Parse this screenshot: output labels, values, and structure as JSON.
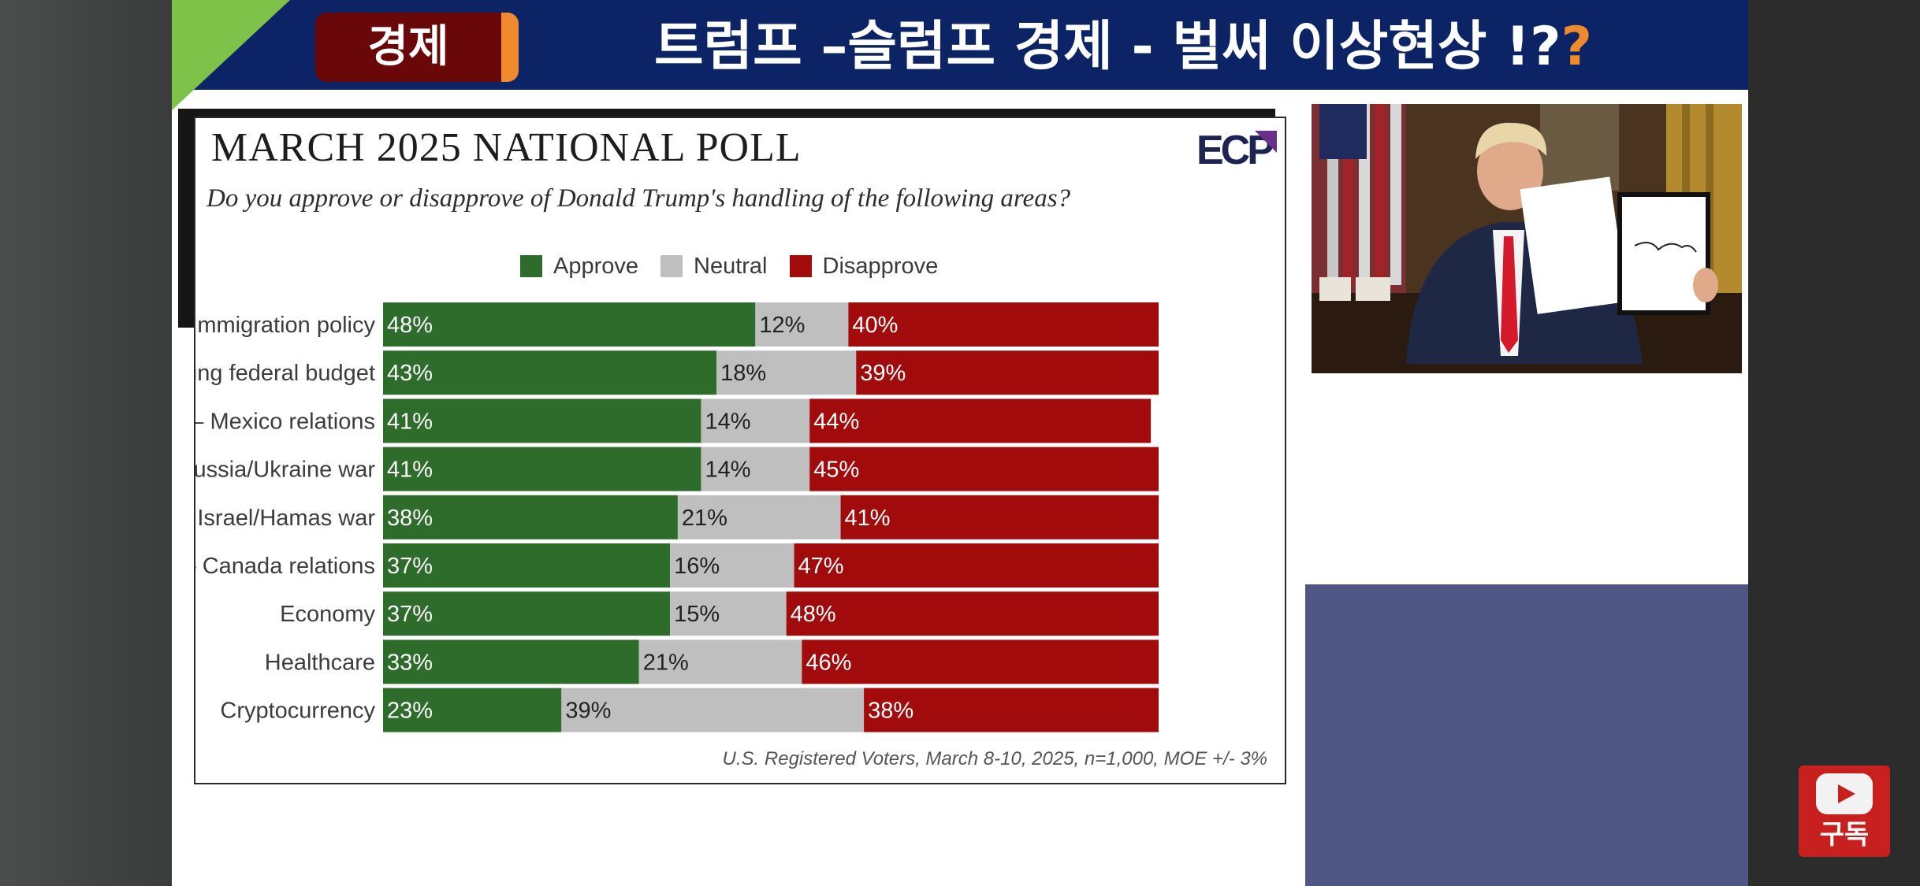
{
  "header": {
    "category": "경제",
    "headline": "트럼프 –슬럼프 경제  - 벌써 이상현상 !?",
    "headline_accent": "?"
  },
  "chart": {
    "logo_text": "ECP",
    "source": "U.S. Registered Voters, March 8-10, 2025, n=1,000, MOE +/- 3%"
  },
  "subscribe": {
    "label": "구독"
  },
  "colors": {
    "header_bg": "#0c2466",
    "approve": "#2e6c2c",
    "neutral": "#bfbfbf",
    "disapprove": "#a20b0c",
    "accent": "#ef8a2e"
  },
  "chart_data": {
    "type": "bar",
    "orientation": "horizontal-stacked-100",
    "title": "MARCH 2025 NATIONAL POLL",
    "subtitle": "Do you approve or disapprove of Donald Trump's handling of the following areas?",
    "legend": [
      "Approve",
      "Neutral",
      "Disapprove"
    ],
    "legend_placement": "top",
    "categories": [
      "Immigration policy",
      "Balancing federal budget",
      "US – Mexico relations",
      "Russia/Ukraine war",
      "Israel/Hamas war",
      "US – Canada relations",
      "Economy",
      "Healthcare",
      "Cryptocurrency"
    ],
    "series": [
      {
        "name": "Approve",
        "color": "#2e6c2c",
        "values": [
          48,
          43,
          41,
          41,
          38,
          37,
          37,
          33,
          23
        ]
      },
      {
        "name": "Neutral",
        "color": "#bfbfbf",
        "values": [
          12,
          18,
          14,
          14,
          21,
          16,
          15,
          21,
          39
        ]
      },
      {
        "name": "Disapprove",
        "color": "#a20b0c",
        "values": [
          40,
          39,
          44,
          45,
          41,
          47,
          48,
          46,
          38
        ]
      }
    ],
    "value_suffix": "%",
    "xlim": [
      0,
      100
    ],
    "grid": false
  }
}
